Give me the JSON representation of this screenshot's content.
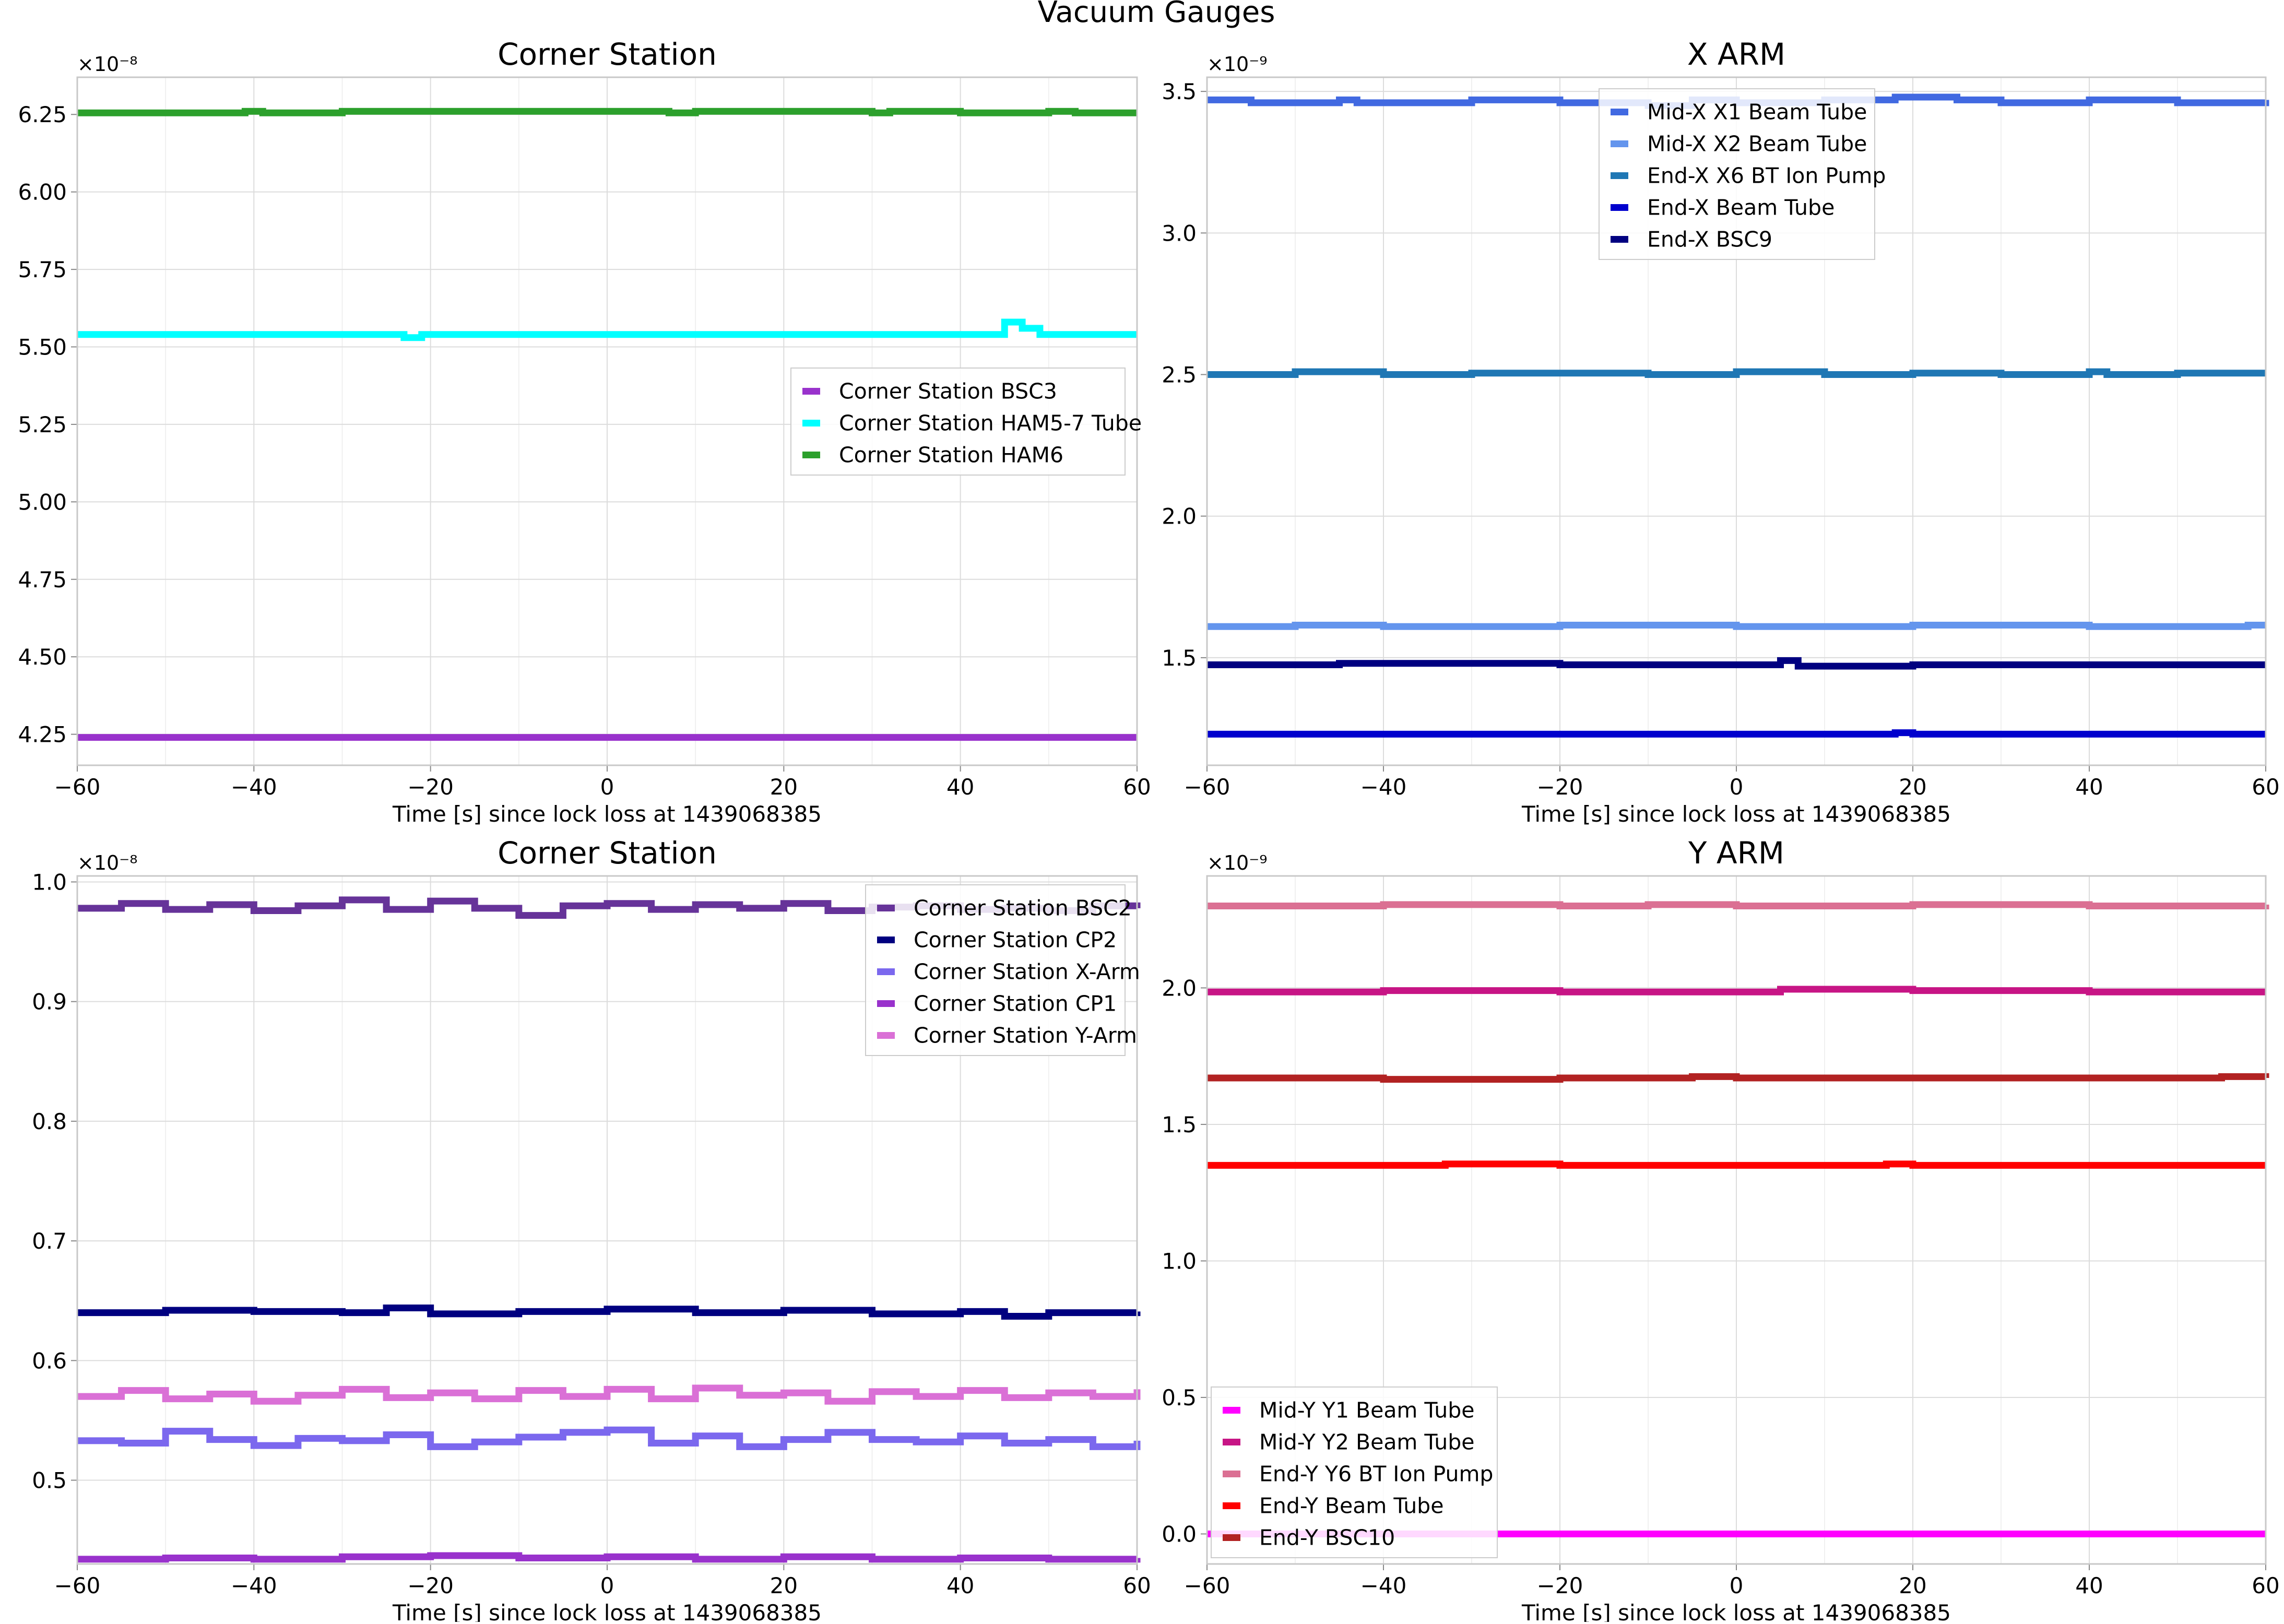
{
  "figure_title": "Vacuum Gauges",
  "chart_data": [
    {
      "type": "line",
      "title": "Corner Station",
      "xlabel": "Time [s] since lock loss at 1439068385",
      "ylabel": "",
      "offset_text": "×10⁻⁸",
      "xlim": [
        -60,
        60
      ],
      "ylim": [
        4.15,
        6.37
      ],
      "xticks": [
        "−60",
        "−40",
        "−20",
        "0",
        "20",
        "40",
        "60"
      ],
      "yticks": [
        "4.25",
        "4.50",
        "4.75",
        "5.00",
        "5.25",
        "5.50",
        "5.75",
        "6.00",
        "6.25"
      ],
      "grid": true,
      "legend_position": "center-right",
      "series": [
        {
          "name": "Corner Station BSC3",
          "color": "#9932cc",
          "x": [
            -60,
            60
          ],
          "y": [
            4.24,
            4.24
          ]
        },
        {
          "name": "Corner Station HAM5-7 Tube",
          "color": "#00ffff",
          "x": [
            -60,
            -24,
            -23,
            -21,
            45,
            47,
            49,
            60
          ],
          "y": [
            5.54,
            5.54,
            5.53,
            5.54,
            5.58,
            5.56,
            5.54,
            5.54
          ]
        },
        {
          "name": "Corner Station HAM6",
          "color": "#2ca02c",
          "x": [
            -60,
            -41,
            -39,
            -30,
            -20,
            5,
            7,
            10,
            20,
            30,
            32,
            40,
            50,
            53,
            60
          ],
          "y": [
            6.255,
            6.26,
            6.255,
            6.26,
            6.26,
            6.26,
            6.255,
            6.26,
            6.26,
            6.255,
            6.26,
            6.255,
            6.26,
            6.255,
            6.255
          ]
        }
      ]
    },
    {
      "type": "line",
      "title": "X ARM",
      "xlabel": "Time [s] since lock loss at 1439068385",
      "ylabel": "",
      "offset_text": "×10⁻⁹",
      "xlim": [
        -60,
        60
      ],
      "ylim": [
        1.12,
        3.55
      ],
      "xticks": [
        "−60",
        "−40",
        "−20",
        "0",
        "20",
        "40",
        "60"
      ],
      "yticks": [
        "1.5",
        "2.0",
        "2.5",
        "3.0",
        "3.5"
      ],
      "grid": true,
      "legend_position": "top-center",
      "series": [
        {
          "name": "Mid-X X1 Beam Tube",
          "color": "#4169e1",
          "x": [
            -60,
            -55,
            -45,
            -43,
            -30,
            -20,
            -10,
            -5,
            0,
            10,
            15,
            18,
            25,
            30,
            40,
            50,
            60
          ],
          "y": [
            3.47,
            3.46,
            3.47,
            3.46,
            3.47,
            3.46,
            3.45,
            3.47,
            3.46,
            3.47,
            3.47,
            3.48,
            3.47,
            3.46,
            3.47,
            3.46,
            3.47
          ]
        },
        {
          "name": "Mid-X X2 Beam Tube",
          "color": "#6495ed",
          "x": [
            -60,
            -50,
            -40,
            -20,
            0,
            20,
            40,
            58,
            60
          ],
          "y": [
            1.61,
            1.615,
            1.61,
            1.615,
            1.61,
            1.615,
            1.61,
            1.615,
            1.615
          ]
        },
        {
          "name": "End-X X6 BT Ion Pump",
          "color": "#1f77b4",
          "x": [
            -60,
            -50,
            -40,
            -30,
            -20,
            -10,
            0,
            10,
            20,
            30,
            40,
            42,
            50,
            60
          ],
          "y": [
            2.5,
            2.51,
            2.5,
            2.505,
            2.505,
            2.5,
            2.51,
            2.5,
            2.505,
            2.5,
            2.51,
            2.5,
            2.505,
            2.505
          ]
        },
        {
          "name": "End-X Beam Tube",
          "color": "#0000cd",
          "x": [
            -60,
            -40,
            -20,
            0,
            18,
            20,
            40,
            60
          ],
          "y": [
            1.23,
            1.23,
            1.23,
            1.23,
            1.235,
            1.23,
            1.23,
            1.23
          ]
        },
        {
          "name": "End-X BSC9",
          "color": "#000080",
          "x": [
            -60,
            -45,
            -20,
            3,
            5,
            7,
            20,
            40,
            60
          ],
          "y": [
            1.475,
            1.48,
            1.475,
            1.475,
            1.49,
            1.47,
            1.475,
            1.475,
            1.475
          ]
        }
      ]
    },
    {
      "type": "line",
      "title": "Corner Station",
      "xlabel": "Time [s] since lock loss at 1439068385",
      "ylabel": "",
      "offset_text": "×10⁻⁸",
      "xlim": [
        -60,
        60
      ],
      "ylim": [
        0.43,
        1.005
      ],
      "xticks": [
        "−60",
        "−40",
        "−20",
        "0",
        "20",
        "40",
        "60"
      ],
      "yticks": [
        "0.5",
        "0.6",
        "0.7",
        "0.8",
        "0.9",
        "1.0"
      ],
      "grid": true,
      "legend_position": "top-right",
      "series": [
        {
          "name": "Corner Station BSC2",
          "color": "#663399",
          "x": [
            -60,
            -55,
            -50,
            -45,
            -40,
            -35,
            -30,
            -25,
            -20,
            -15,
            -10,
            -5,
            0,
            5,
            10,
            15,
            20,
            25,
            30,
            35,
            40,
            45,
            50,
            55,
            60
          ],
          "y": [
            0.978,
            0.982,
            0.977,
            0.981,
            0.976,
            0.98,
            0.985,
            0.977,
            0.984,
            0.978,
            0.972,
            0.98,
            0.982,
            0.977,
            0.981,
            0.978,
            0.982,
            0.976,
            0.979,
            0.98,
            0.977,
            0.978,
            0.976,
            0.98,
            0.978
          ]
        },
        {
          "name": "Corner Station CP2",
          "color": "#000080",
          "x": [
            -60,
            -50,
            -40,
            -30,
            -25,
            -20,
            -10,
            0,
            10,
            20,
            30,
            40,
            45,
            50,
            60
          ],
          "y": [
            0.64,
            0.642,
            0.641,
            0.64,
            0.644,
            0.639,
            0.641,
            0.643,
            0.64,
            0.642,
            0.639,
            0.641,
            0.637,
            0.64,
            0.641
          ]
        },
        {
          "name": "Corner Station X-Arm",
          "color": "#7b68ee",
          "x": [
            -60,
            -55,
            -50,
            -45,
            -40,
            -35,
            -30,
            -25,
            -20,
            -15,
            -10,
            -5,
            0,
            5,
            10,
            15,
            20,
            25,
            30,
            35,
            40,
            45,
            50,
            55,
            60
          ],
          "y": [
            0.533,
            0.531,
            0.541,
            0.534,
            0.529,
            0.535,
            0.533,
            0.538,
            0.528,
            0.532,
            0.536,
            0.54,
            0.542,
            0.531,
            0.537,
            0.528,
            0.534,
            0.54,
            0.534,
            0.532,
            0.537,
            0.531,
            0.534,
            0.528,
            0.533
          ]
        },
        {
          "name": "Corner Station CP1",
          "color": "#9932cc",
          "x": [
            -60,
            -50,
            -40,
            -30,
            -20,
            -10,
            0,
            10,
            20,
            30,
            40,
            50,
            60
          ],
          "y": [
            0.434,
            0.435,
            0.434,
            0.436,
            0.437,
            0.435,
            0.436,
            0.434,
            0.436,
            0.434,
            0.435,
            0.434,
            0.435
          ]
        },
        {
          "name": "Corner Station Y-Arm",
          "color": "#da70d6",
          "x": [
            -60,
            -55,
            -50,
            -45,
            -40,
            -35,
            -30,
            -25,
            -20,
            -15,
            -10,
            -5,
            0,
            5,
            10,
            15,
            20,
            25,
            30,
            35,
            40,
            45,
            50,
            55,
            60
          ],
          "y": [
            0.57,
            0.575,
            0.568,
            0.572,
            0.566,
            0.571,
            0.576,
            0.569,
            0.573,
            0.568,
            0.575,
            0.57,
            0.576,
            0.568,
            0.577,
            0.571,
            0.573,
            0.566,
            0.574,
            0.57,
            0.575,
            0.569,
            0.573,
            0.57,
            0.576
          ]
        }
      ]
    },
    {
      "type": "line",
      "title": "Y ARM",
      "xlabel": "Time [s] since lock loss at 1439068385",
      "ylabel": "",
      "offset_text": "×10⁻⁹",
      "xlim": [
        -60,
        60
      ],
      "ylim": [
        -0.11,
        2.41
      ],
      "xticks": [
        "−60",
        "−40",
        "−20",
        "0",
        "20",
        "40",
        "60"
      ],
      "yticks": [
        "0.0",
        "0.5",
        "1.0",
        "1.5",
        "2.0"
      ],
      "grid": true,
      "legend_position": "bottom-left",
      "series": [
        {
          "name": "Mid-Y Y1 Beam Tube",
          "color": "#ff00ff",
          "x": [
            -60,
            60
          ],
          "y": [
            0.0,
            0.0
          ]
        },
        {
          "name": "Mid-Y Y2 Beam Tube",
          "color": "#c71585",
          "x": [
            -60,
            -40,
            -20,
            0,
            5,
            20,
            40,
            60
          ],
          "y": [
            1.985,
            1.99,
            1.985,
            1.985,
            1.995,
            1.99,
            1.985,
            1.985
          ]
        },
        {
          "name": "End-Y Y6 BT Ion Pump",
          "color": "#db7093",
          "x": [
            -60,
            -40,
            -20,
            -10,
            0,
            20,
            40,
            60
          ],
          "y": [
            2.3,
            2.305,
            2.3,
            2.305,
            2.3,
            2.305,
            2.3,
            2.305
          ]
        },
        {
          "name": "End-Y Beam Tube",
          "color": "#ff0000",
          "x": [
            -60,
            -40,
            -33,
            -20,
            0,
            17,
            20,
            40,
            60
          ],
          "y": [
            1.35,
            1.35,
            1.355,
            1.35,
            1.35,
            1.355,
            1.35,
            1.35,
            1.35
          ]
        },
        {
          "name": "End-Y BSC10",
          "color": "#b22222",
          "x": [
            -60,
            -40,
            -20,
            -5,
            0,
            20,
            40,
            55,
            60
          ],
          "y": [
            1.67,
            1.665,
            1.67,
            1.675,
            1.67,
            1.67,
            1.67,
            1.675,
            1.67
          ]
        }
      ]
    }
  ]
}
